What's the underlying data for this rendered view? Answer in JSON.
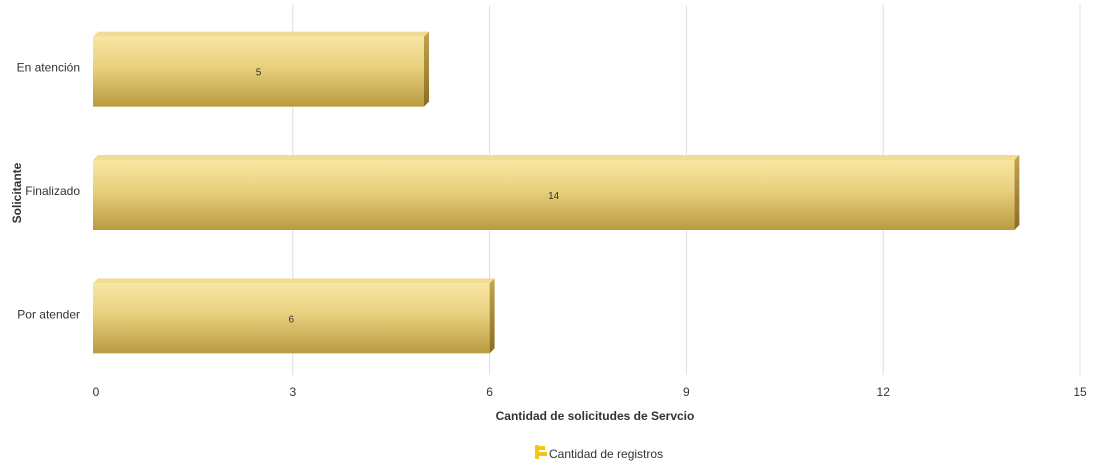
{
  "chart_data": {
    "type": "bar",
    "orientation": "horizontal",
    "categories": [
      "En atención",
      "Finalizado",
      "Por atender"
    ],
    "series": [
      {
        "name": "Cantidad de registros",
        "values": [
          5,
          14,
          6
        ]
      }
    ],
    "data_labels": [
      "5",
      "14",
      "6"
    ],
    "xlabel": "Cantidad de solicitudes de Servcio",
    "ylabel": "Solicitante",
    "xlim": [
      0,
      15
    ],
    "x_ticks": [
      0,
      3,
      6,
      9,
      12,
      15
    ],
    "x_tick_labels": [
      "0",
      "3",
      "6",
      "9",
      "12",
      "15"
    ],
    "grid": "vertical",
    "legend_position": "bottom-center",
    "colors": {
      "bar_top": "#f8e7a1",
      "bar_mid": "#e2c66e",
      "bar_bottom": "#b99a41",
      "bar_side": "#9c7f2e",
      "grid": "#dddddd",
      "legend_swatch": "#f5c518"
    }
  }
}
